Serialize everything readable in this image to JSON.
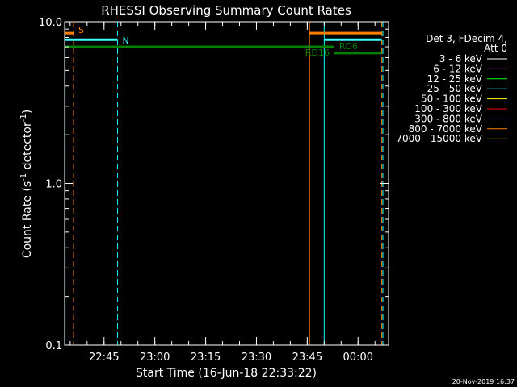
{
  "chart_data": {
    "type": "line",
    "title": "RHESSI Observing Summary Count Rates",
    "xlabel": "Start Time (16-Jun-18 22:33:22)",
    "ylabel_main": "Count Rate (s",
    "ylabel_sup1": "-1",
    "ylabel_mid": " detector",
    "ylabel_sup2": "-1",
    "ylabel_end": ")",
    "y_scale": "log",
    "ylim": [
      0.1,
      10.0
    ],
    "y_ticks": [
      "10.0",
      "1.0",
      "0.1"
    ],
    "x_range": [
      "22:33:22",
      "00:09"
    ],
    "x_ticks": [
      "22:45",
      "23:00",
      "23:15",
      "23:30",
      "23:45",
      "00:00"
    ],
    "legend_header_1": "Det 3, FDecim 4,",
    "legend_header_2": "Att 0",
    "legend_position": "right",
    "legend": [
      {
        "label": "3 - 6 keV",
        "color": "#ffffff"
      },
      {
        "label": "6 - 12 keV",
        "color": "#ff00ff"
      },
      {
        "label": "12 - 25 keV",
        "color": "#00ff00"
      },
      {
        "label": "25 - 50 keV",
        "color": "#00ffff"
      },
      {
        "label": "50 - 100 keV",
        "color": "#ffff00"
      },
      {
        "label": "100 - 300 keV",
        "color": "#ff0000"
      },
      {
        "label": "300 - 800 keV",
        "color": "#0000ff"
      },
      {
        "label": "800 - 7000 keV",
        "color": "#ff8000"
      },
      {
        "label": "7000 - 15000 keV",
        "color": "#808000"
      }
    ],
    "flag_bars": [
      {
        "name": "S",
        "color": "#ff8000",
        "y": 8.5,
        "segments": [
          [
            "22:33:22",
            "22:36"
          ],
          [
            "23:45:40",
            "00:07"
          ]
        ]
      },
      {
        "name": "N",
        "color": "#40ffff",
        "y": 7.75,
        "segments": [
          [
            "22:33:22",
            "22:49"
          ],
          [
            "23:50",
            "00:07"
          ]
        ]
      },
      {
        "name": "RD16",
        "color": "#008000",
        "y": 7.0,
        "segments": [
          [
            "22:33:22",
            "23:53"
          ]
        ]
      },
      {
        "name": "RD6",
        "color": "#008000",
        "y": 6.4,
        "segments": [
          [
            "23:53",
            "00:07"
          ]
        ]
      }
    ],
    "vertical_markers": [
      {
        "t": "22:33:30",
        "color": "#00ffff",
        "style": "solid"
      },
      {
        "t": "22:36",
        "color": "#ff8000",
        "style": "dashed"
      },
      {
        "t": "22:49",
        "color": "#00ffff",
        "style": "dashed"
      },
      {
        "t": "23:45:40",
        "color": "#ff8000",
        "style": "solid"
      },
      {
        "t": "23:50",
        "color": "#00ffff",
        "style": "solid"
      },
      {
        "t": "00:07",
        "color": "#ff8000",
        "style": "dashed"
      },
      {
        "t": "00:07:20",
        "color": "#00ffff",
        "style": "dashed"
      }
    ]
  },
  "footer": {
    "timestamp": "20-Nov-2019 16:37"
  }
}
